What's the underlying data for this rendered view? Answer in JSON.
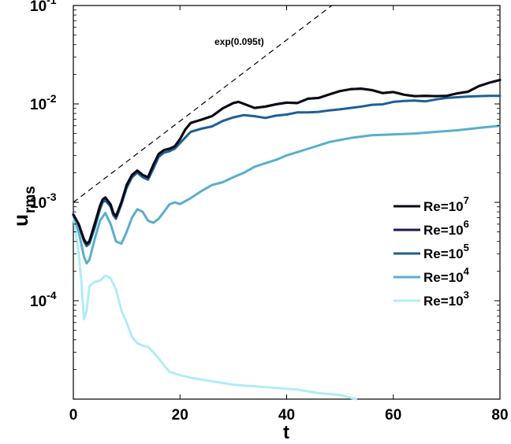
{
  "chart_data": {
    "type": "line",
    "xlabel": "t",
    "ylabel": "u",
    "ylabel_sub": "rms",
    "xlim": [
      0,
      80
    ],
    "ylim": [
      1e-05,
      0.1
    ],
    "yscale": "log",
    "grid": false,
    "legend_position": "right-middle",
    "x_ticks": [
      0,
      20,
      40,
      60,
      80
    ],
    "x_tick_labels": [
      "0",
      "20",
      "40",
      "60",
      "80"
    ],
    "y_ticks": [
      {
        "value": 0.0001,
        "base": "10",
        "exp": "-4"
      },
      {
        "value": 0.001,
        "base": "10",
        "exp": "-3"
      },
      {
        "value": 0.01,
        "base": "10",
        "exp": "-2"
      },
      {
        "value": 0.1,
        "base": "10",
        "exp": "-1"
      }
    ],
    "reference_line": {
      "label": "exp(0.095t)",
      "x": [
        0,
        50
      ],
      "y": [
        0.001,
        0.1157
      ],
      "style": "dashed",
      "color": "#000000"
    },
    "series": [
      {
        "name": "Re=10^7",
        "legend_base": "Re=10",
        "legend_exp": "7",
        "color": "#0a0a14",
        "x": [
          0,
          1,
          2,
          2.5,
          3,
          4,
          5,
          5.5,
          6,
          7,
          7.5,
          8,
          9,
          10,
          11,
          12,
          13,
          14,
          15,
          16,
          17,
          18,
          19,
          20,
          21,
          22,
          24,
          26,
          28,
          30,
          31,
          32,
          34,
          36,
          38,
          40,
          42,
          44,
          46,
          48,
          50,
          52,
          54,
          56,
          58,
          60,
          62,
          64,
          66,
          68,
          70,
          72,
          74,
          76,
          78,
          80
        ],
        "y": [
          0.00075,
          0.0006,
          0.00042,
          0.00038,
          0.0004,
          0.0006,
          0.00092,
          0.00107,
          0.00112,
          0.00095,
          0.00078,
          0.00072,
          0.001,
          0.0015,
          0.0019,
          0.0021,
          0.0019,
          0.0018,
          0.0024,
          0.0031,
          0.0034,
          0.0035,
          0.0037,
          0.0044,
          0.0055,
          0.0064,
          0.0069,
          0.0075,
          0.009,
          0.0102,
          0.0105,
          0.01,
          0.0091,
          0.0094,
          0.0099,
          0.0103,
          0.0102,
          0.0113,
          0.0115,
          0.0125,
          0.0135,
          0.0141,
          0.0143,
          0.0138,
          0.0129,
          0.0132,
          0.0124,
          0.012,
          0.0121,
          0.012,
          0.0121,
          0.0128,
          0.0133,
          0.0151,
          0.0164,
          0.0175
        ]
      },
      {
        "name": "Re=10^6",
        "legend_base": "Re=10",
        "legend_exp": "6",
        "color": "#181a52",
        "x": [
          0,
          1,
          2,
          2.5,
          3,
          4,
          5,
          5.5,
          6,
          7,
          7.5,
          8,
          9,
          10,
          11,
          12,
          13,
          14,
          15,
          16,
          17,
          18,
          19,
          20,
          21,
          22,
          24,
          26,
          28,
          30,
          31,
          32,
          34,
          36,
          38,
          40,
          42,
          44,
          46,
          48,
          50,
          52,
          54,
          56,
          58,
          60,
          62,
          64,
          66,
          68,
          70,
          72,
          74,
          76,
          78,
          80
        ],
        "y": [
          0.00075,
          0.0006,
          0.00042,
          0.00038,
          0.0004,
          0.0006,
          0.00092,
          0.00107,
          0.00112,
          0.00095,
          0.00078,
          0.00072,
          0.001,
          0.0015,
          0.0019,
          0.0021,
          0.0019,
          0.0018,
          0.0024,
          0.0031,
          0.0034,
          0.0035,
          0.0037,
          0.0044,
          0.0055,
          0.0064,
          0.0069,
          0.0075,
          0.009,
          0.0102,
          0.0105,
          0.01,
          0.0091,
          0.0094,
          0.0099,
          0.0103,
          0.0102,
          0.0113,
          0.0115,
          0.0125,
          0.0135,
          0.0141,
          0.0143,
          0.0138,
          0.0129,
          0.0132,
          0.0124,
          0.012,
          0.0121,
          0.012,
          0.0121,
          0.0128,
          0.0133,
          0.0151,
          0.0164,
          0.0175
        ]
      },
      {
        "name": "Re=10^5",
        "legend_base": "Re=10",
        "legend_exp": "5",
        "color": "#1f5f96",
        "x": [
          0,
          1,
          2,
          2.5,
          3,
          4,
          5,
          5.5,
          6,
          7,
          7.5,
          8,
          9,
          10,
          11,
          12,
          13,
          14,
          15,
          16,
          17,
          18,
          19,
          20,
          22,
          24,
          26,
          28,
          30,
          32,
          34,
          36,
          38,
          40,
          42,
          44,
          46,
          48,
          50,
          52,
          54,
          56,
          58,
          60,
          62,
          64,
          66,
          68,
          70,
          72,
          74,
          76,
          78,
          80
        ],
        "y": [
          0.00075,
          0.0006,
          0.0004,
          0.00036,
          0.00038,
          0.00055,
          0.00085,
          0.001,
          0.00105,
          0.0009,
          0.00074,
          0.00068,
          0.00095,
          0.0014,
          0.0018,
          0.002,
          0.0018,
          0.0017,
          0.0022,
          0.0029,
          0.0032,
          0.0033,
          0.0035,
          0.004,
          0.0052,
          0.0056,
          0.0059,
          0.0067,
          0.0073,
          0.0077,
          0.0075,
          0.0072,
          0.0076,
          0.0078,
          0.0082,
          0.0082,
          0.0083,
          0.0086,
          0.0088,
          0.0091,
          0.0094,
          0.0098,
          0.0099,
          0.0105,
          0.0107,
          0.0108,
          0.0106,
          0.0111,
          0.0115,
          0.0117,
          0.0119,
          0.012,
          0.0121,
          0.0121
        ]
      },
      {
        "name": "Re=10^4",
        "legend_base": "Re=10",
        "legend_exp": "4",
        "color": "#5aaecc",
        "x": [
          0,
          1,
          2,
          2.5,
          3,
          4,
          5,
          6,
          7,
          8,
          9,
          10,
          11,
          12,
          13,
          14,
          15,
          16,
          17,
          18,
          19,
          20,
          22,
          24,
          26,
          28,
          30,
          32,
          34,
          36,
          38,
          40,
          44,
          48,
          52,
          56,
          60,
          64,
          68,
          72,
          76,
          80
        ],
        "y": [
          0.00075,
          0.0005,
          0.00028,
          0.00024,
          0.00026,
          0.00042,
          0.00065,
          0.00078,
          0.0006,
          0.0004,
          0.00038,
          0.0005,
          0.0007,
          0.00085,
          0.0008,
          0.00065,
          0.00062,
          0.00068,
          0.0008,
          0.00095,
          0.001,
          0.00096,
          0.0011,
          0.0013,
          0.0015,
          0.0016,
          0.0018,
          0.002,
          0.0023,
          0.0025,
          0.0027,
          0.003,
          0.0035,
          0.0041,
          0.0045,
          0.0048,
          0.0049,
          0.005,
          0.0052,
          0.0054,
          0.0057,
          0.006
        ]
      },
      {
        "name": "Re=10^3",
        "legend_base": "Re=10",
        "legend_exp": "3",
        "color": "#b0ecf6",
        "x": [
          0,
          1,
          1.5,
          2,
          2.5,
          3,
          4,
          5,
          6,
          7,
          8,
          9,
          10,
          11,
          12,
          13,
          14,
          15,
          16,
          17,
          18,
          20,
          22,
          24,
          26,
          28,
          30,
          34,
          38,
          42,
          46,
          50,
          53
        ],
        "y": [
          0.00075,
          0.0003,
          0.00016,
          6.5e-05,
          8e-05,
          0.00014,
          0.000155,
          0.00016,
          0.00018,
          0.00017,
          0.00013,
          8e-05,
          6e-05,
          4.3e-05,
          3.7e-05,
          3.5e-05,
          3.4e-05,
          3e-05,
          2.6e-05,
          2.2e-05,
          1.9e-05,
          1.75e-05,
          1.65e-05,
          1.58e-05,
          1.52e-05,
          1.46e-05,
          1.4e-05,
          1.35e-05,
          1.3e-05,
          1.25e-05,
          1.15e-05,
          1.1e-05,
          1e-05
        ]
      }
    ]
  }
}
